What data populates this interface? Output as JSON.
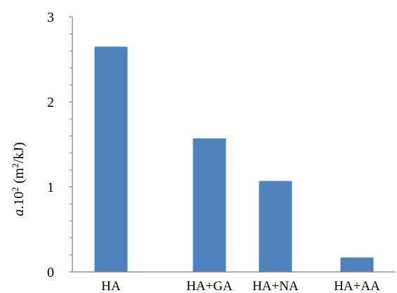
{
  "chart_data": {
    "type": "bar",
    "categories": [
      "HA",
      "HA+GA",
      "HA+NA",
      "HA+AA"
    ],
    "values": [
      2.65,
      1.57,
      1.07,
      0.17
    ],
    "ylim": [
      0,
      3
    ],
    "y_major_ticks": [
      "0",
      "1",
      "2",
      "3"
    ],
    "y_minor_ticks_per_major": 5,
    "ylabel": {
      "italic": "a",
      "main": ".10",
      "sup": "2",
      "unit_open": " (m",
      "unit_sup": "2",
      "unit_close": "/kJ)"
    },
    "grid": false,
    "legend": "none",
    "bar_color": "#4f81bd",
    "axis_color": "#808080"
  }
}
